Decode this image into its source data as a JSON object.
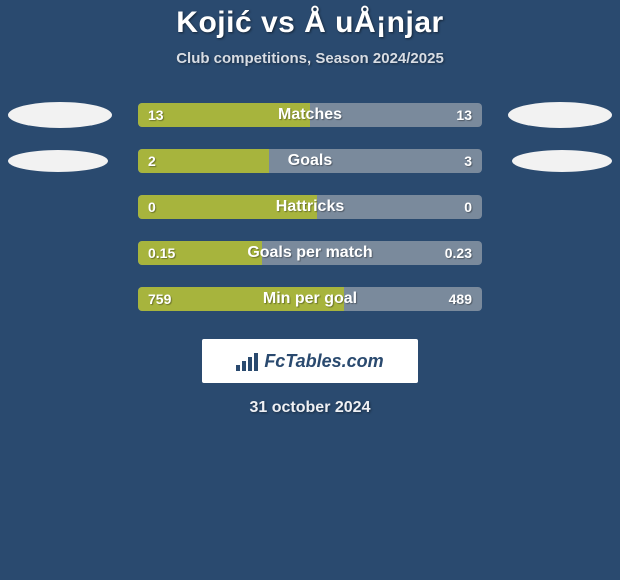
{
  "background_color": "#2a4a6f",
  "title": {
    "text": "Kojić vs Å uÅ¡njar",
    "color": "#ffffff",
    "fontsize": 30
  },
  "subtitle": {
    "text": "Club competitions, Season 2024/2025",
    "color": "#d8dde4",
    "fontsize": 15
  },
  "oval": {
    "color": "#f2f2f2",
    "width": 104,
    "height": 26,
    "small_width": 100,
    "small_height": 22
  },
  "bar": {
    "track_color": "#7a8a9c",
    "fill_color": "#a7b43d",
    "label_color": "#ffffff",
    "value_color": "#ffffff",
    "label_fontsize": 16,
    "value_fontsize": 14
  },
  "rows": [
    {
      "label": "Matches",
      "left_val": "13",
      "right_val": "13",
      "fill_pct": 50,
      "show_ovals": true,
      "oval_size": "large"
    },
    {
      "label": "Goals",
      "left_val": "2",
      "right_val": "3",
      "fill_pct": 38,
      "show_ovals": true,
      "oval_size": "small"
    },
    {
      "label": "Hattricks",
      "left_val": "0",
      "right_val": "0",
      "fill_pct": 52,
      "show_ovals": false
    },
    {
      "label": "Goals per match",
      "left_val": "0.15",
      "right_val": "0.23",
      "fill_pct": 36,
      "show_ovals": false
    },
    {
      "label": "Min per goal",
      "left_val": "759",
      "right_val": "489",
      "fill_pct": 60,
      "show_ovals": false
    }
  ],
  "logo": {
    "box_bg": "#ffffff",
    "text": "FcTables.com",
    "text_color": "#2a4a6f",
    "fontsize": 18
  },
  "date": {
    "text": "31 october 2024",
    "color": "#eef0f4",
    "fontsize": 16
  }
}
